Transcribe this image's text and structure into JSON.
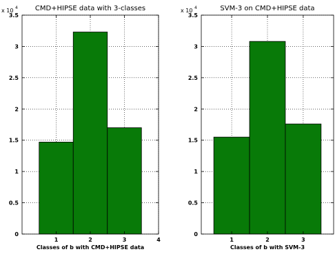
{
  "chart_data": [
    {
      "type": "bar",
      "title": "CMD+HIPSE data with 3-classes",
      "xlabel": "Classes of b with CMD+HIPSE data",
      "ylabel": "",
      "multiplier_base": "x 10",
      "multiplier_exp": "4",
      "categories": [
        "1",
        "2",
        "3"
      ],
      "values": [
        14700,
        32300,
        17000
      ],
      "xlim": [
        0,
        4
      ],
      "xticks": [
        "1",
        "2",
        "3",
        "4"
      ],
      "ylim": [
        0,
        35000
      ],
      "yticks": [
        "0",
        "0.5",
        "1",
        "1.5",
        "2",
        "2.5",
        "3",
        "3.5"
      ],
      "bar_color": "#087a08",
      "grid": true
    },
    {
      "type": "bar",
      "title": "SVM-3 on CMD+HIPSE data",
      "xlabel": "Classes of b with SVM-3",
      "ylabel": "",
      "multiplier_base": "x 10",
      "multiplier_exp": "4",
      "categories": [
        "1",
        "2",
        "3"
      ],
      "values": [
        15500,
        30800,
        17600
      ],
      "xlim": [
        0.15,
        3.85
      ],
      "xticks": [
        "1",
        "2",
        "3"
      ],
      "ylim": [
        0,
        35000
      ],
      "yticks": [
        "0",
        "0.5",
        "1",
        "1.5",
        "2",
        "2.5",
        "3",
        "3.5"
      ],
      "bar_color": "#087a08",
      "grid": true
    }
  ]
}
